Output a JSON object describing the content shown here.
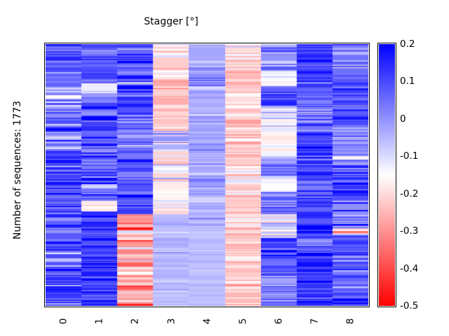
{
  "figure": {
    "background": "#ffffff",
    "text_color": "#000000"
  },
  "chart_data": {
    "type": "heatmap",
    "title": "Stagger [°]",
    "xlabel": "",
    "ylabel": "Number of sequences: 1773",
    "n_rows": 1773,
    "n_cols": 9,
    "x_categories": [
      "0",
      "1",
      "2",
      "3",
      "4",
      "5",
      "6",
      "7",
      "8"
    ],
    "grid": false,
    "legend_position": "colorbar-right",
    "colormap": {
      "name": "bwr_r",
      "vmin": -0.5,
      "vmax": 0.2,
      "white_point": -0.15,
      "stops": [
        {
          "pos": 0.0,
          "color": "#ff0000"
        },
        {
          "pos": 0.5,
          "color": "#ffffff"
        },
        {
          "pos": 1.0,
          "color": "#0000ff"
        }
      ]
    },
    "colorbar_ticks": [
      "0.2",
      "0.1",
      "0",
      "-0.1",
      "-0.2",
      "-0.3",
      "-0.4",
      "-0.5"
    ],
    "columns": [
      {
        "label": "0",
        "segments": [
          {
            "from": 0.0,
            "to": 0.16,
            "mean": 0.09,
            "sd": 0.06
          },
          {
            "from": 0.16,
            "to": 0.26,
            "mean": -0.03,
            "sd": 0.09
          },
          {
            "from": 0.26,
            "to": 0.34,
            "mean": 0.06,
            "sd": 0.07
          },
          {
            "from": 0.34,
            "to": 0.4,
            "mean": 0.0,
            "sd": 0.08
          },
          {
            "from": 0.4,
            "to": 0.62,
            "mean": 0.09,
            "sd": 0.06
          },
          {
            "from": 0.62,
            "to": 0.78,
            "mean": 0.11,
            "sd": 0.06
          },
          {
            "from": 0.78,
            "to": 0.86,
            "mean": 0.04,
            "sd": 0.08
          },
          {
            "from": 0.86,
            "to": 1.0,
            "mean": 0.1,
            "sd": 0.07
          }
        ]
      },
      {
        "label": "1",
        "segments": [
          {
            "from": 0.0,
            "to": 0.15,
            "mean": 0.07,
            "sd": 0.06
          },
          {
            "from": 0.15,
            "to": 0.185,
            "mean": -0.13,
            "sd": 0.05
          },
          {
            "from": 0.185,
            "to": 0.6,
            "mean": 0.08,
            "sd": 0.07
          },
          {
            "from": 0.6,
            "to": 0.64,
            "mean": -0.18,
            "sd": 0.03
          },
          {
            "from": 0.64,
            "to": 1.0,
            "mean": 0.12,
            "sd": 0.05
          }
        ]
      },
      {
        "label": "2",
        "segments": [
          {
            "from": 0.0,
            "to": 0.65,
            "mean": 0.07,
            "sd": 0.07
          },
          {
            "from": 0.65,
            "to": 0.7,
            "mean": -0.3,
            "sd": 0.08
          },
          {
            "from": 0.7,
            "to": 1.0,
            "mean": -0.27,
            "sd": 0.1
          }
        ]
      },
      {
        "label": "3",
        "segments": [
          {
            "from": 0.0,
            "to": 0.05,
            "mean": -0.18,
            "sd": 0.06
          },
          {
            "from": 0.05,
            "to": 0.33,
            "mean": -0.21,
            "sd": 0.04
          },
          {
            "from": 0.33,
            "to": 0.4,
            "mean": -0.05,
            "sd": 0.09
          },
          {
            "from": 0.4,
            "to": 0.52,
            "mean": -0.15,
            "sd": 0.07
          },
          {
            "from": 0.52,
            "to": 0.65,
            "mean": -0.17,
            "sd": 0.05
          },
          {
            "from": 0.65,
            "to": 1.0,
            "mean": -0.055,
            "sd": 0.02
          }
        ]
      },
      {
        "label": "4",
        "segments": [
          {
            "from": 0.0,
            "to": 0.12,
            "mean": -0.03,
            "sd": 0.03
          },
          {
            "from": 0.12,
            "to": 0.17,
            "mean": 0.02,
            "sd": 0.06
          },
          {
            "from": 0.17,
            "to": 0.5,
            "mean": -0.035,
            "sd": 0.03
          },
          {
            "from": 0.5,
            "to": 0.56,
            "mean": 0.0,
            "sd": 0.06
          },
          {
            "from": 0.56,
            "to": 0.7,
            "mean": -0.04,
            "sd": 0.03
          },
          {
            "from": 0.7,
            "to": 1.0,
            "mean": -0.06,
            "sd": 0.015
          }
        ]
      },
      {
        "label": "5",
        "segments": [
          {
            "from": 0.0,
            "to": 0.1,
            "mean": -0.2,
            "sd": 0.05
          },
          {
            "from": 0.1,
            "to": 0.2,
            "mean": -0.24,
            "sd": 0.05
          },
          {
            "from": 0.2,
            "to": 0.45,
            "mean": -0.22,
            "sd": 0.05
          },
          {
            "from": 0.45,
            "to": 0.6,
            "mean": -0.18,
            "sd": 0.06
          },
          {
            "from": 0.6,
            "to": 0.75,
            "mean": -0.21,
            "sd": 0.05
          },
          {
            "from": 0.75,
            "to": 1.0,
            "mean": -0.22,
            "sd": 0.04
          }
        ]
      },
      {
        "label": "6",
        "segments": [
          {
            "from": 0.0,
            "to": 0.1,
            "mean": 0.02,
            "sd": 0.08
          },
          {
            "from": 0.1,
            "to": 0.16,
            "mean": -0.13,
            "sd": 0.04
          },
          {
            "from": 0.16,
            "to": 0.235,
            "mean": 0.09,
            "sd": 0.06
          },
          {
            "from": 0.235,
            "to": 0.33,
            "mean": -0.12,
            "sd": 0.06
          },
          {
            "from": 0.33,
            "to": 0.41,
            "mean": -0.145,
            "sd": 0.02
          },
          {
            "from": 0.41,
            "to": 0.455,
            "mean": -0.11,
            "sd": 0.06
          },
          {
            "from": 0.455,
            "to": 0.505,
            "mean": 0.05,
            "sd": 0.06
          },
          {
            "from": 0.505,
            "to": 0.565,
            "mean": -0.14,
            "sd": 0.03
          },
          {
            "from": 0.565,
            "to": 0.65,
            "mean": 0.06,
            "sd": 0.07
          },
          {
            "from": 0.65,
            "to": 0.74,
            "mean": -0.11,
            "sd": 0.06
          },
          {
            "from": 0.74,
            "to": 0.87,
            "mean": 0.1,
            "sd": 0.06
          },
          {
            "from": 0.87,
            "to": 1.0,
            "mean": 0.0,
            "sd": 0.09
          }
        ]
      },
      {
        "label": "7",
        "segments": [
          {
            "from": 0.0,
            "to": 0.2,
            "mean": 0.12,
            "sd": 0.05
          },
          {
            "from": 0.2,
            "to": 0.3,
            "mean": 0.02,
            "sd": 0.06
          },
          {
            "from": 0.3,
            "to": 0.5,
            "mean": 0.11,
            "sd": 0.06
          },
          {
            "from": 0.5,
            "to": 0.56,
            "mean": 0.06,
            "sd": 0.06
          },
          {
            "from": 0.56,
            "to": 0.75,
            "mean": 0.13,
            "sd": 0.05
          },
          {
            "from": 0.75,
            "to": 0.82,
            "mean": 0.06,
            "sd": 0.08
          },
          {
            "from": 0.82,
            "to": 1.0,
            "mean": 0.13,
            "sd": 0.05
          }
        ]
      },
      {
        "label": "8",
        "segments": [
          {
            "from": 0.0,
            "to": 0.12,
            "mean": 0.02,
            "sd": 0.07
          },
          {
            "from": 0.12,
            "to": 0.3,
            "mean": 0.1,
            "sd": 0.06
          },
          {
            "from": 0.3,
            "to": 0.45,
            "mean": 0.02,
            "sd": 0.09
          },
          {
            "from": 0.45,
            "to": 0.6,
            "mean": 0.06,
            "sd": 0.08
          },
          {
            "from": 0.6,
            "to": 0.705,
            "mean": 0.04,
            "sd": 0.09
          },
          {
            "from": 0.705,
            "to": 0.725,
            "mean": -0.25,
            "sd": 0.06
          },
          {
            "from": 0.725,
            "to": 1.0,
            "mean": 0.09,
            "sd": 0.06
          }
        ]
      }
    ]
  }
}
